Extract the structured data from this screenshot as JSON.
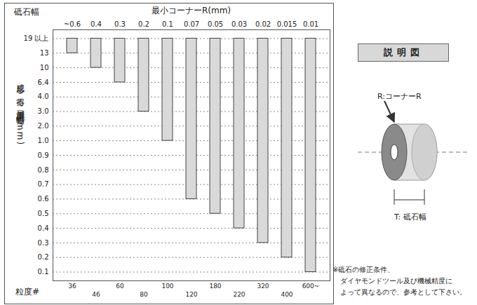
{
  "chart_data": {
    "type": "bar",
    "x_label": "最小コーナーR(mm)",
    "y_header": "砥石幅",
    "y_label": "成形し得る最小砥石幅T(mm)",
    "categories": [
      "~0.6",
      "0.4",
      "0.3",
      "0.2",
      "0.1",
      "0.07",
      "0.05",
      "0.03",
      "0.02",
      "0.015",
      "0.01"
    ],
    "values": [
      13,
      10,
      6.4,
      3.0,
      1.0,
      0.6,
      0.5,
      0.4,
      0.3,
      0.2,
      0.1
    ],
    "color": "#d9d9d9",
    "ylim": [
      0.1,
      19
    ],
    "yticks": [
      {
        "value": 19,
        "label": "19 以上"
      },
      13,
      10,
      6.4,
      {
        "value": 4,
        "label": "4.0"
      },
      {
        "value": 3,
        "label": "3.0"
      },
      {
        "value": 2,
        "label": "2.0"
      },
      {
        "value": 1,
        "label": "1.0"
      },
      0.9,
      0.8,
      0.7,
      0.6,
      0.5,
      0.4,
      0.3,
      0.2,
      0.1
    ],
    "grid": true,
    "secondary_x_label": "粒度#",
    "secondary_categories": [
      36,
      46,
      60,
      80,
      100,
      120,
      180,
      220,
      320,
      400,
      {
        "value": 600,
        "label": "600~"
      }
    ],
    "diagram": {
      "title": "説明図",
      "corner_label": "R:コーナーR",
      "width_label": "T: 砥石幅"
    },
    "note": [
      "※砥石の修正条件、",
      "ダイヤモンドツール及び機械精度に",
      "よって異なるので、参考として下さい。"
    ]
  }
}
